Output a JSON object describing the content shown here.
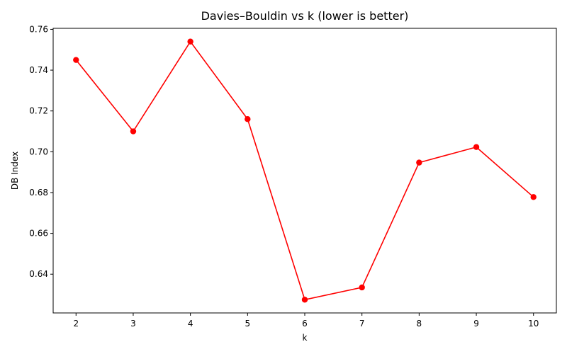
{
  "chart_data": {
    "type": "line",
    "title": "Davies–Bouldin vs k (lower is better)",
    "xlabel": "k",
    "ylabel": "DB Index",
    "x": [
      2,
      3,
      4,
      5,
      6,
      7,
      8,
      9,
      10
    ],
    "series": [
      {
        "values": [
          0.745,
          0.71,
          0.754,
          0.716,
          0.6275,
          0.6335,
          0.6947,
          0.7023,
          0.6778
        ],
        "color": "#ff0000",
        "marker": "circle"
      }
    ],
    "xticks": [
      "2",
      "3",
      "4",
      "5",
      "6",
      "7",
      "8",
      "9",
      "10"
    ],
    "yticks": [
      "0.64",
      "0.66",
      "0.68",
      "0.70",
      "0.72",
      "0.74",
      "0.76"
    ],
    "xlim": [
      1.6,
      10.4
    ],
    "ylim": [
      0.621,
      0.7605
    ],
    "grid": false,
    "legend": "none"
  }
}
